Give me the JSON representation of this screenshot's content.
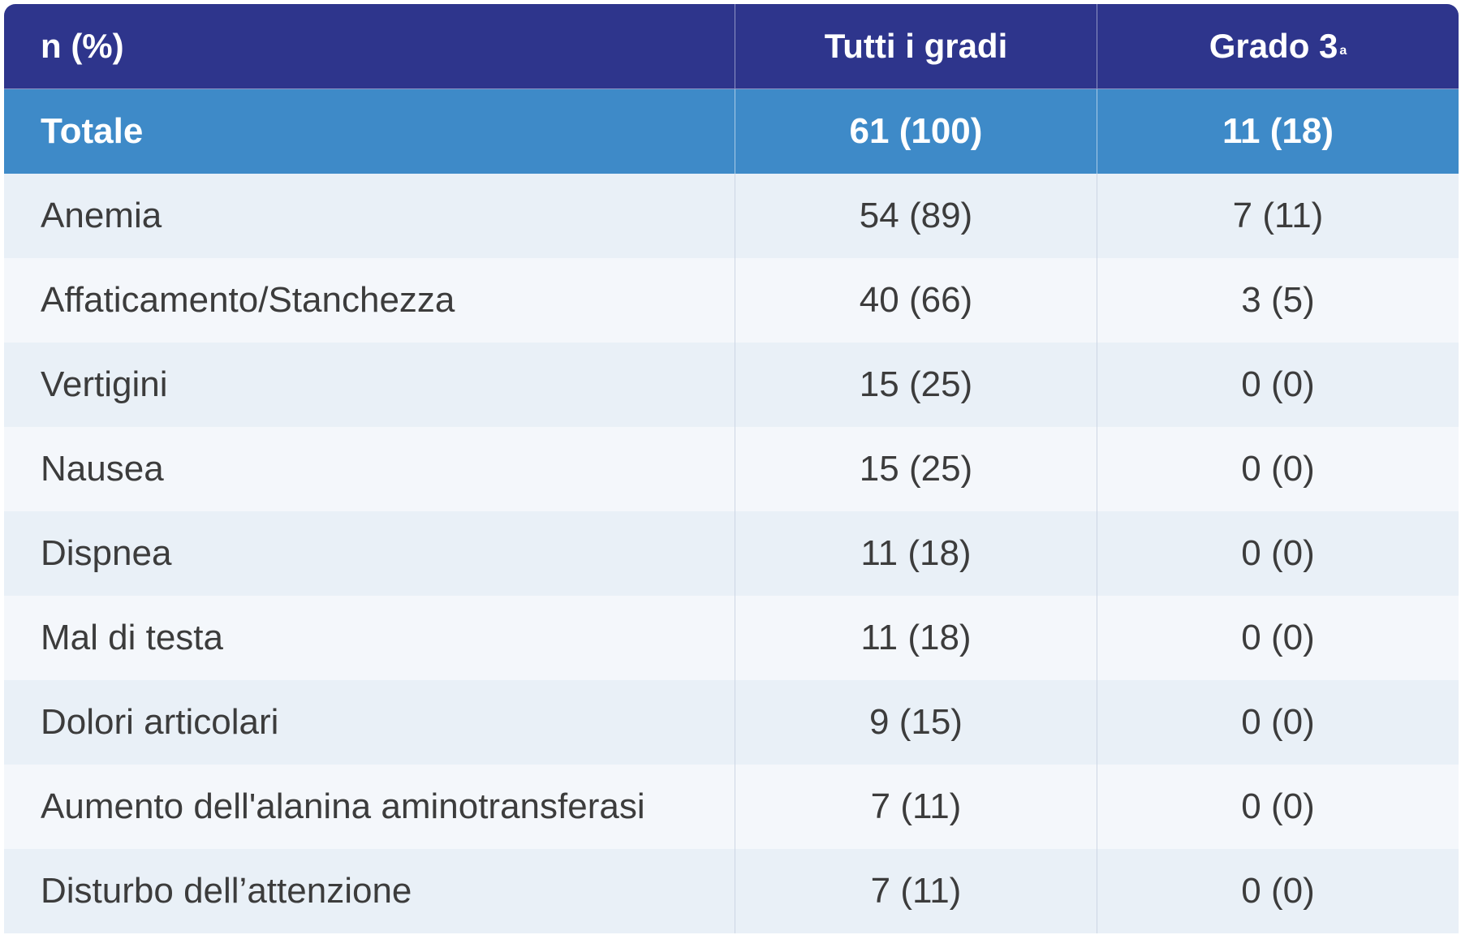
{
  "header": {
    "col1": "n (%)",
    "col2": "Tutti i gradi",
    "col3": "Grado 3",
    "col3_sup": "a"
  },
  "total": {
    "label": "Totale",
    "all_grades": "61 (100)",
    "grade3": "11 (18)"
  },
  "rows": [
    {
      "label": "Anemia",
      "all_grades": "54 (89)",
      "grade3": "7 (11)"
    },
    {
      "label": "Affaticamento/Stanchezza",
      "all_grades": "40 (66)",
      "grade3": "3 (5)"
    },
    {
      "label": "Vertigini",
      "all_grades": "15 (25)",
      "grade3": "0 (0)"
    },
    {
      "label": "Nausea",
      "all_grades": "15 (25)",
      "grade3": "0 (0)"
    },
    {
      "label": "Dispnea",
      "all_grades": "11 (18)",
      "grade3": "0 (0)"
    },
    {
      "label": "Mal di testa",
      "all_grades": "11 (18)",
      "grade3": "0 (0)"
    },
    {
      "label": "Dolori articolari",
      "all_grades": "9 (15)",
      "grade3": "0 (0)"
    },
    {
      "label": "Aumento dell'alanina aminotransferasi",
      "all_grades": "7 (11)",
      "grade3": "0 (0)"
    },
    {
      "label": "Disturbo dell’attenzione",
      "all_grades": "7 (11)",
      "grade3": "0 (0)"
    }
  ],
  "colors": {
    "header_bg": "#2e358c",
    "total_bg": "#3e8ac8",
    "row_odd_bg": "#e9f0f7",
    "row_even_bg": "#f4f7fb",
    "text": "#3c3c3c"
  }
}
